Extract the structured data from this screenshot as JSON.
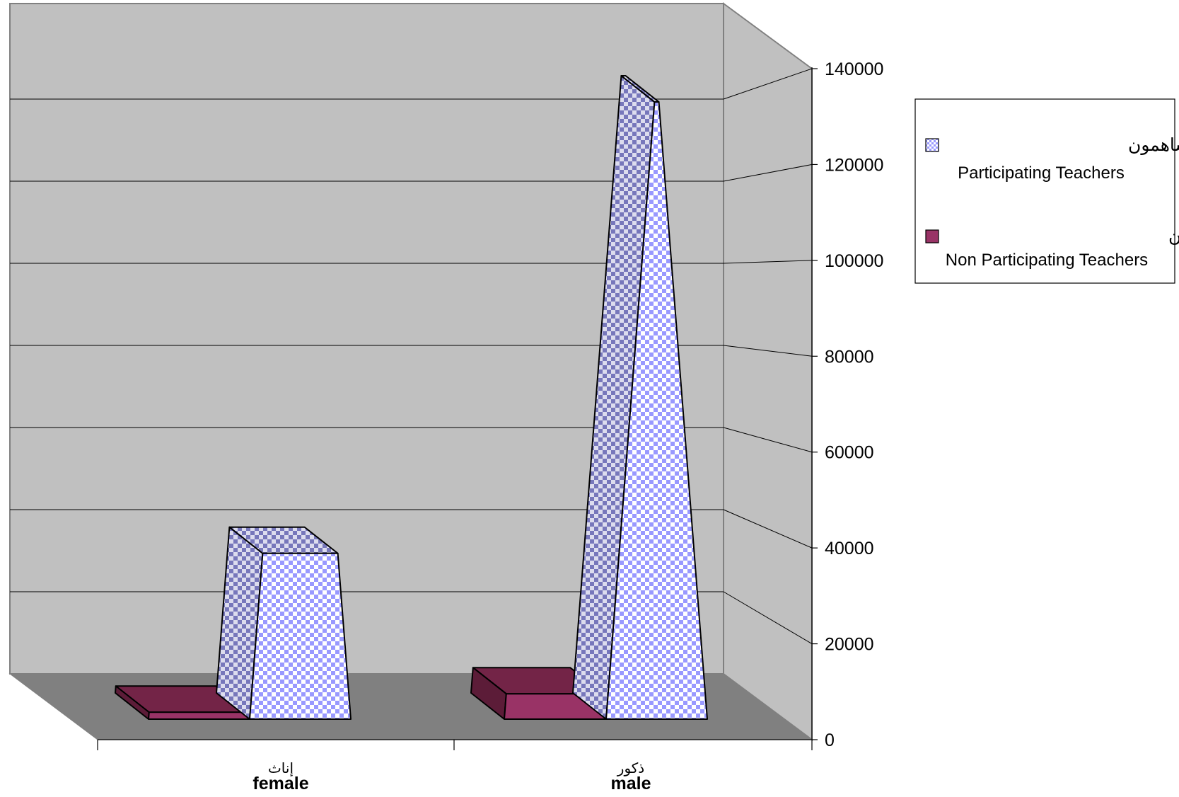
{
  "chart_data": {
    "type": "bar",
    "style": "3d-pyramid",
    "categories": [
      {
        "ar": "إناث",
        "en": "female"
      },
      {
        "ar": "ذكور",
        "en": "male"
      }
    ],
    "series": [
      {
        "name_ar": "المدرسون غير المساهمون",
        "name_en": "Non Participating Teachers",
        "color": "#993366",
        "values": [
          1500,
          5500
        ]
      },
      {
        "name_ar": "المدرسون المساهمون",
        "name_en": "Participating Teachers",
        "color": "#9999ff",
        "pattern": "checkerboard",
        "values": [
          36000,
          134000
        ]
      }
    ],
    "y_ticks": [
      "0",
      "20000",
      "40000",
      "60000",
      "80000",
      "100000",
      "120000",
      "140000"
    ],
    "ylim": [
      0,
      140000
    ],
    "grid": true,
    "legend": "right",
    "wall_color": "#c0c0c0",
    "floor_color": "#808080"
  }
}
